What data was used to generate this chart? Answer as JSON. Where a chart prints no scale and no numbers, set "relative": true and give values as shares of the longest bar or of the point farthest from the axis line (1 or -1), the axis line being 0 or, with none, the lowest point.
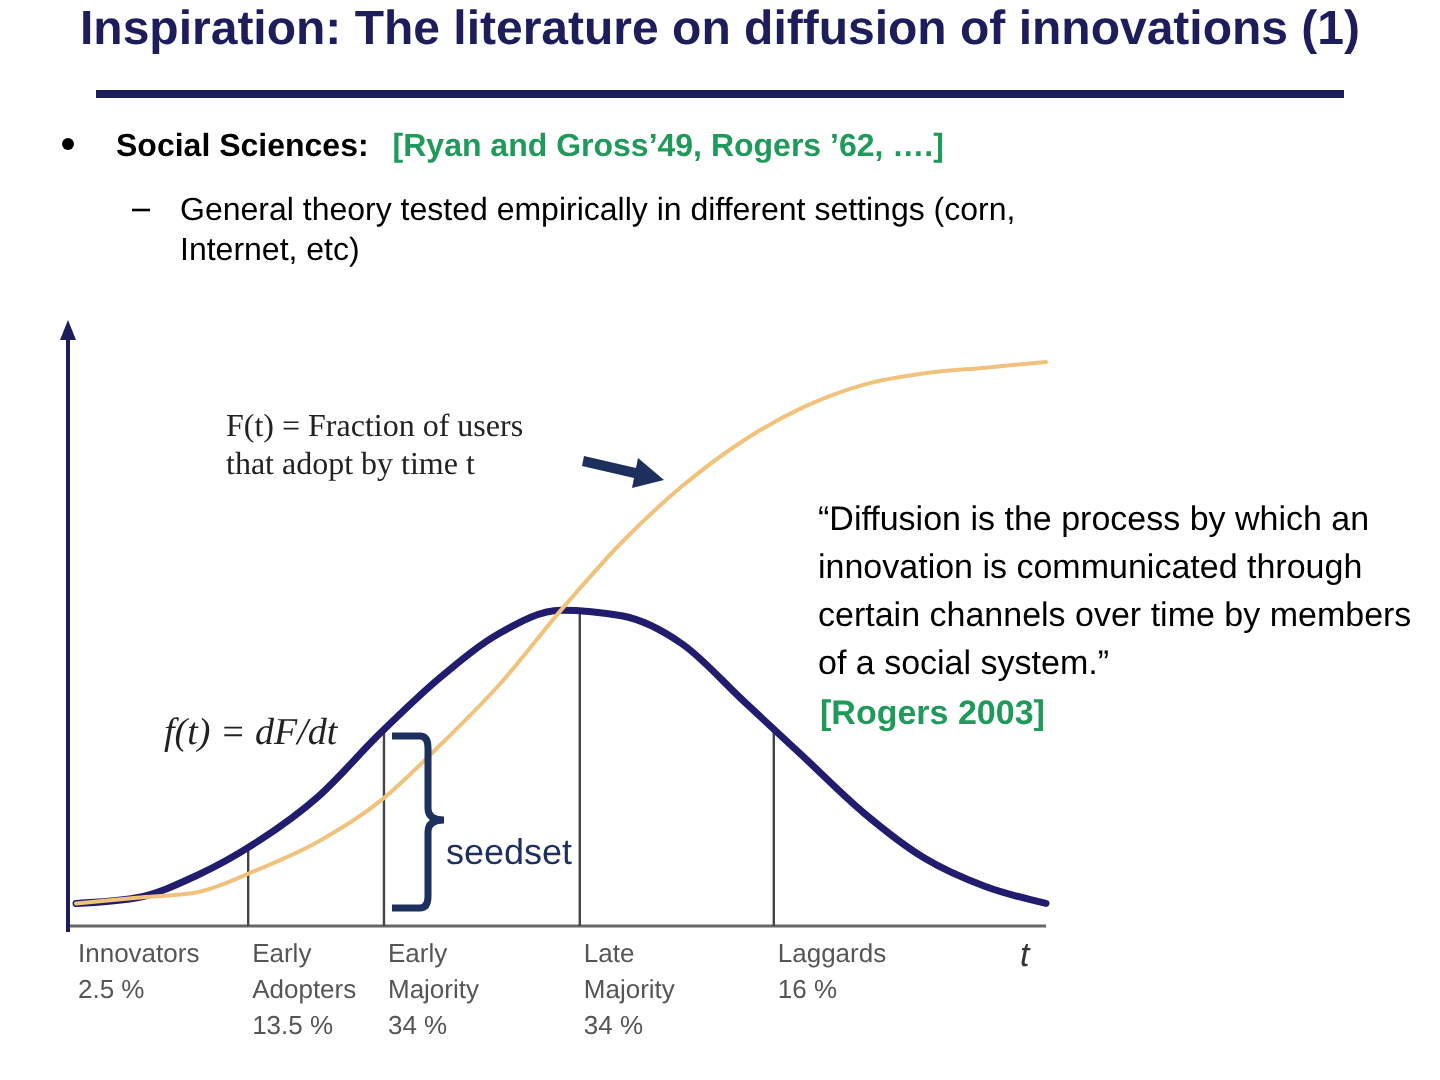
{
  "chart_data": {
    "type": "line",
    "title": "Inspiration: The literature on diffusion of innovations (1)",
    "xlabel": "t",
    "relative": true,
    "marker": "none",
    "line_style": "solid",
    "categories": [
      null,
      null,
      null,
      null,
      null,
      null,
      null,
      null,
      null,
      null,
      null,
      null,
      null,
      null,
      null,
      null,
      null
    ],
    "series": [
      {
        "color": "#221c6e",
        "values": [
          0.04,
          0.05,
          0.09,
          0.15,
          0.23,
          0.34,
          0.44,
          0.52,
          0.56,
          0.55,
          0.5,
          0.4,
          0.3,
          0.2,
          0.12,
          0.07,
          0.04
        ]
      },
      {
        "color": "#f0c27c",
        "values": [
          0.04,
          0.05,
          0.06,
          0.1,
          0.15,
          0.22,
          0.32,
          0.43,
          0.56,
          0.68,
          0.78,
          0.86,
          0.92,
          0.96,
          0.98,
          0.99,
          1.0
        ]
      }
    ],
    "annotations": [
      "Social Sciences:",
      "[Ryan and Gross’49, Rogers ’62, ….]",
      "General theory tested empirically in different settings (corn, Internet, etc)",
      "F(t) = Fraction of users that adopt by time t",
      "f(t) = dF/dt",
      "seedset",
      "“Diffusion is the process by which an innovation is communicated through certain channels over time by members of a social system.”",
      "[Rogers 2003]",
      "Innovators\n2.5 %",
      "Early\nAdopters\n13.5 %",
      "Early\nMajority\n34 %",
      "Late\nMajority\n34 %",
      "Laggards\n16 %"
    ]
  }
}
